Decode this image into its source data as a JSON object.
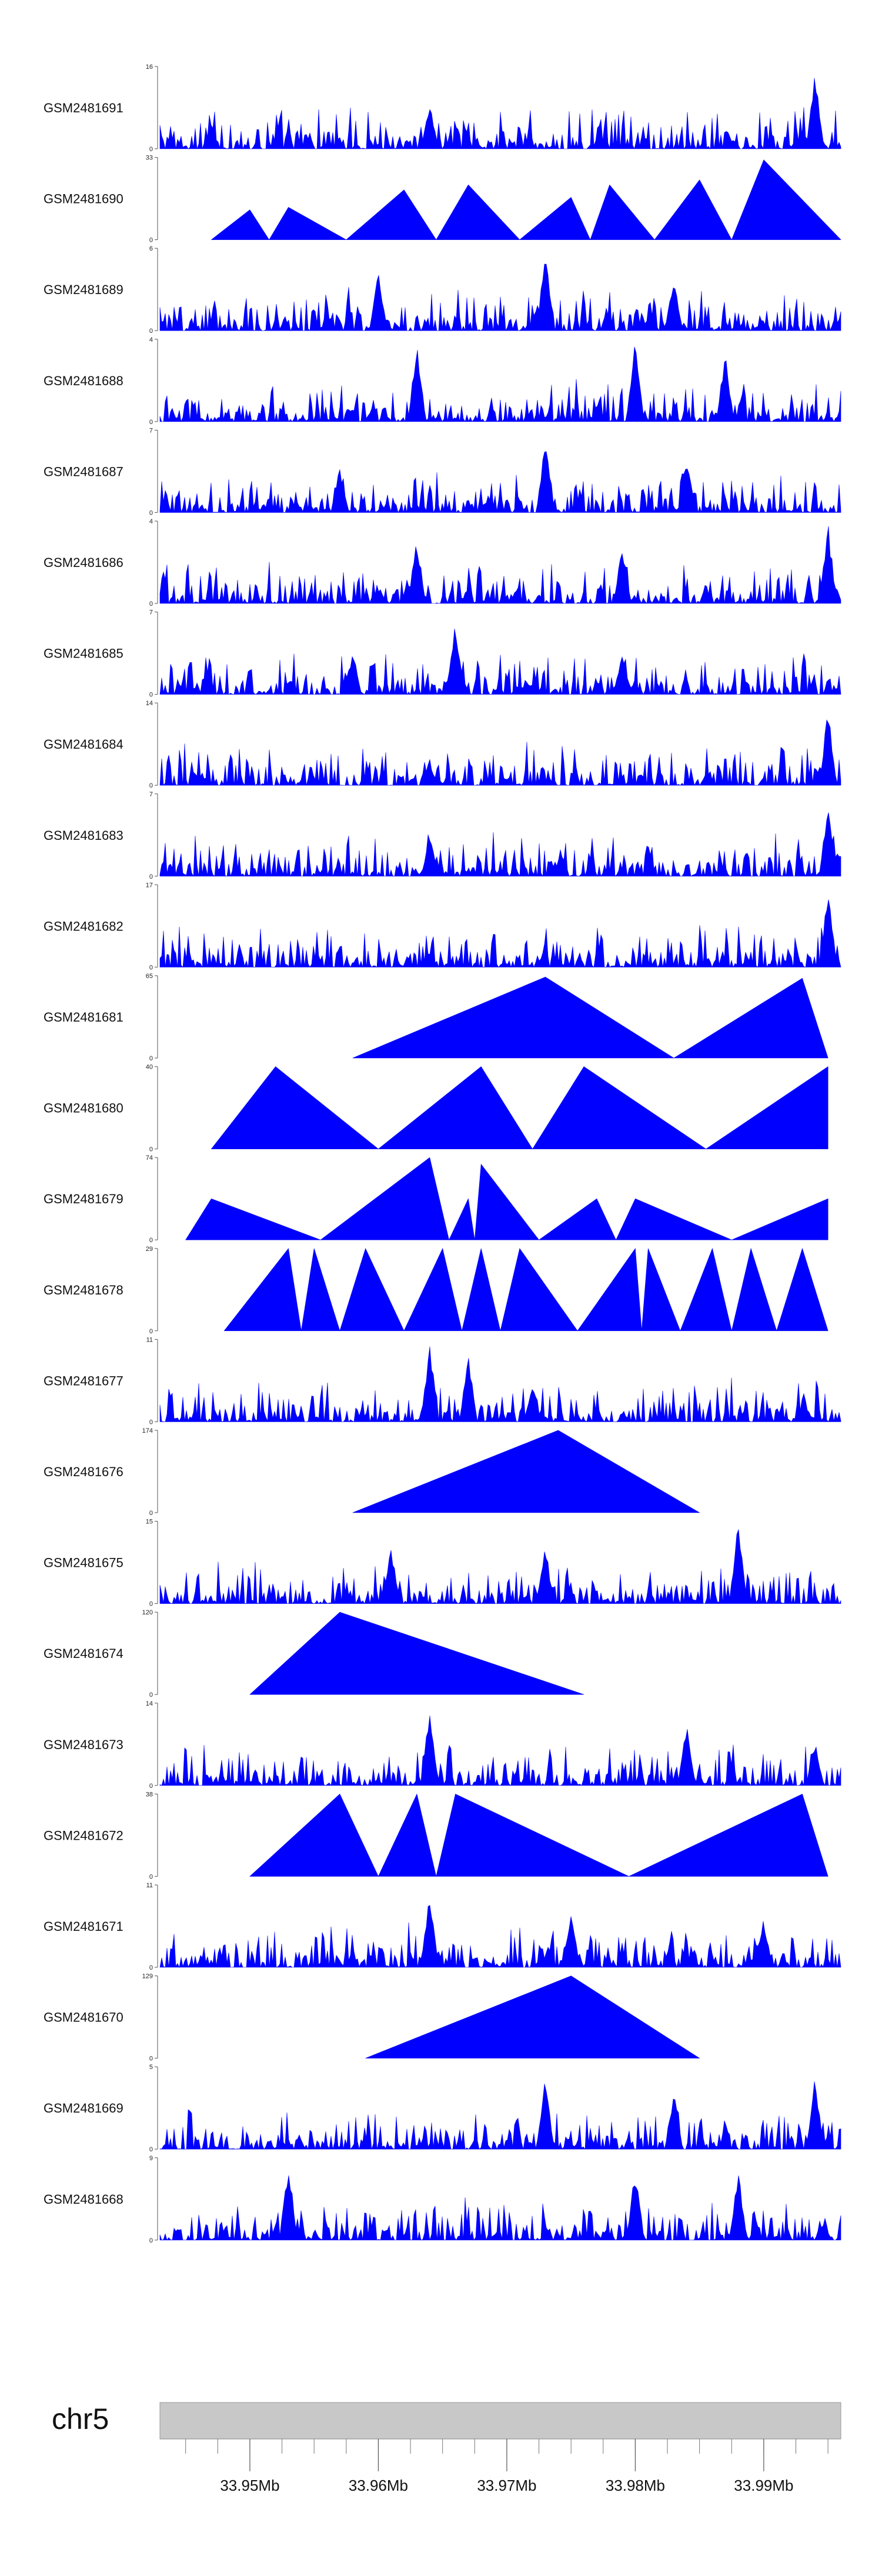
{
  "chart_data": {
    "type": "area",
    "chromosome": "chr5",
    "x_range_mb": [
      33.943,
      33.996
    ],
    "x_ticks": [
      {
        "value": 33.95,
        "label": "33.95Mb"
      },
      {
        "value": 33.96,
        "label": "33.96Mb"
      },
      {
        "value": 33.97,
        "label": "33.97Mb"
      },
      {
        "value": 33.98,
        "label": "33.98Mb"
      },
      {
        "value": 33.99,
        "label": "33.99Mb"
      }
    ],
    "fill_color": "#0000ff",
    "ideogram_color": "#c8c8c8",
    "tracks": [
      {
        "name": "GSM2481691",
        "ymax": 16,
        "ymin": 0,
        "style": "dense",
        "peaks": [
          [
            33.947,
            5
          ],
          [
            33.964,
            9
          ],
          [
            33.994,
            15.5
          ]
        ]
      },
      {
        "name": "GSM2481690",
        "ymax": 33,
        "ymin": 0,
        "style": "sparse",
        "start": 33.947,
        "peaks": [
          [
            33.95,
            12
          ],
          [
            33.953,
            13
          ],
          [
            33.962,
            20
          ],
          [
            33.967,
            22
          ],
          [
            33.975,
            17
          ],
          [
            33.978,
            22
          ],
          [
            33.985,
            24
          ],
          [
            33.99,
            32
          ]
        ]
      },
      {
        "name": "GSM2481689",
        "ymax": 6,
        "ymin": 0,
        "style": "dense",
        "peaks": [
          [
            33.96,
            4.5
          ],
          [
            33.973,
            6
          ],
          [
            33.983,
            4.2
          ]
        ]
      },
      {
        "name": "GSM2481688",
        "ymax": 4,
        "ymin": 0,
        "style": "dense",
        "peaks": [
          [
            33.963,
            4
          ],
          [
            33.98,
            4
          ],
          [
            33.987,
            3.5
          ]
        ]
      },
      {
        "name": "GSM2481687",
        "ymax": 7,
        "ymin": 0,
        "style": "dense",
        "peaks": [
          [
            33.957,
            4
          ],
          [
            33.973,
            7
          ],
          [
            33.984,
            5
          ]
        ]
      },
      {
        "name": "GSM2481686",
        "ymax": 4,
        "ymin": 0,
        "style": "dense",
        "peaks": [
          [
            33.963,
            3.2
          ],
          [
            33.979,
            3
          ],
          [
            33.995,
            4
          ]
        ]
      },
      {
        "name": "GSM2481685",
        "ymax": 7,
        "ymin": 0,
        "style": "dense",
        "peaks": [
          [
            33.958,
            4
          ],
          [
            33.966,
            6.5
          ],
          [
            33.979,
            4
          ]
        ]
      },
      {
        "name": "GSM2481684",
        "ymax": 14,
        "ymin": 0,
        "style": "dense",
        "peaks": [
          [
            33.964,
            4
          ],
          [
            33.995,
            13.5
          ]
        ]
      },
      {
        "name": "GSM2481683",
        "ymax": 7,
        "ymin": 0,
        "style": "dense",
        "peaks": [
          [
            33.964,
            3.5
          ],
          [
            33.995,
            6.5
          ]
        ]
      },
      {
        "name": "GSM2481682",
        "ymax": 17,
        "ymin": 0,
        "style": "dense",
        "peaks": [
          [
            33.964,
            3
          ],
          [
            33.995,
            16.5
          ]
        ]
      },
      {
        "name": "GSM2481681",
        "ymax": 65,
        "ymin": 0,
        "style": "sparse",
        "start": 33.958,
        "end": 33.995,
        "peaks": [
          [
            33.973,
            64
          ],
          [
            33.993,
            63
          ]
        ]
      },
      {
        "name": "GSM2481680",
        "ymax": 40,
        "ymin": 0,
        "style": "sparse",
        "start": 33.947,
        "end": 33.995,
        "peaks": [
          [
            33.952,
            40
          ],
          [
            33.968,
            40
          ],
          [
            33.976,
            40
          ],
          [
            33.995,
            40
          ]
        ]
      },
      {
        "name": "GSM2481679",
        "ymax": 74,
        "ymin": 0,
        "style": "sparse",
        "start": 33.945,
        "end": 33.995,
        "peaks": [
          [
            33.947,
            37
          ],
          [
            33.964,
            74
          ],
          [
            33.967,
            37
          ],
          [
            33.968,
            68
          ],
          [
            33.977,
            37
          ],
          [
            33.98,
            37
          ],
          [
            33.995,
            37
          ]
        ]
      },
      {
        "name": "GSM2481678",
        "ymax": 29,
        "ymin": 0,
        "style": "sparse",
        "start": 33.948,
        "end": 33.995,
        "peaks": [
          [
            33.953,
            29
          ],
          [
            33.955,
            29
          ],
          [
            33.959,
            29
          ],
          [
            33.965,
            29
          ],
          [
            33.968,
            29
          ],
          [
            33.971,
            29
          ],
          [
            33.98,
            29
          ],
          [
            33.981,
            29
          ],
          [
            33.986,
            29
          ],
          [
            33.989,
            29
          ],
          [
            33.993,
            29
          ]
        ]
      },
      {
        "name": "GSM2481677",
        "ymax": 11,
        "ymin": 0,
        "style": "dense",
        "peaks": [
          [
            33.964,
            11
          ],
          [
            33.967,
            9
          ],
          [
            33.972,
            5
          ]
        ]
      },
      {
        "name": "GSM2481676",
        "ymax": 174,
        "ymin": 0,
        "style": "sparse",
        "start": 33.958,
        "end": 33.985,
        "peaks": [
          [
            33.974,
            174
          ]
        ]
      },
      {
        "name": "GSM2481675",
        "ymax": 15,
        "ymin": 0,
        "style": "dense",
        "peaks": [
          [
            33.961,
            11
          ],
          [
            33.973,
            11
          ],
          [
            33.988,
            15
          ]
        ]
      },
      {
        "name": "GSM2481674",
        "ymax": 120,
        "ymin": 0,
        "style": "sparse",
        "start": 33.95,
        "end": 33.976,
        "peaks": [
          [
            33.957,
            120
          ]
        ]
      },
      {
        "name": "GSM2481673",
        "ymax": 14,
        "ymin": 0,
        "style": "dense",
        "peaks": [
          [
            33.964,
            14
          ],
          [
            33.984,
            11
          ],
          [
            33.994,
            8
          ]
        ]
      },
      {
        "name": "GSM2481672",
        "ymax": 38,
        "ymin": 0,
        "style": "sparse",
        "start": 33.95,
        "end": 33.995,
        "peaks": [
          [
            33.957,
            38
          ],
          [
            33.963,
            38
          ],
          [
            33.966,
            38
          ],
          [
            33.993,
            38
          ]
        ]
      },
      {
        "name": "GSM2481671",
        "ymax": 11,
        "ymin": 0,
        "style": "dense",
        "peaks": [
          [
            33.964,
            11
          ],
          [
            33.975,
            8
          ],
          [
            33.99,
            7
          ]
        ]
      },
      {
        "name": "GSM2481670",
        "ymax": 129,
        "ymin": 0,
        "style": "sparse",
        "start": 33.959,
        "end": 33.985,
        "peaks": [
          [
            33.975,
            129
          ]
        ]
      },
      {
        "name": "GSM2481669",
        "ymax": 5,
        "ymin": 0,
        "style": "dense",
        "peaks": [
          [
            33.973,
            4.5
          ],
          [
            33.983,
            3.8
          ],
          [
            33.994,
            4.5
          ]
        ]
      },
      {
        "name": "GSM2481668",
        "ymax": 9,
        "ymin": 0,
        "style": "dense",
        "peaks": [
          [
            33.953,
            9
          ],
          [
            33.98,
            8.5
          ],
          [
            33.988,
            8
          ]
        ]
      }
    ]
  }
}
